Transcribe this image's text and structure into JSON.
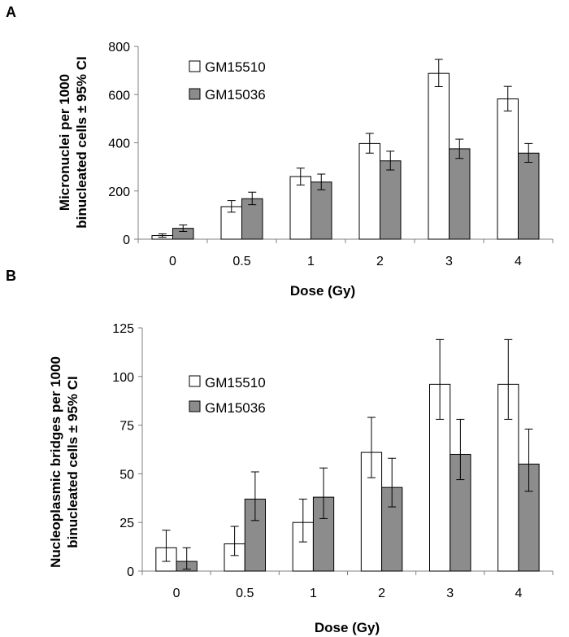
{
  "chart_data": [
    {
      "panel": "A",
      "type": "bar",
      "categories": [
        "0",
        "0.5",
        "1",
        "2",
        "3",
        "4"
      ],
      "series": [
        {
          "name": "GM15510",
          "color": "#ffffff",
          "values": [
            15,
            135,
            260,
            397,
            688,
            582
          ],
          "err_low": [
            7,
            23,
            35,
            40,
            55,
            50
          ],
          "err_high": [
            7,
            25,
            35,
            42,
            58,
            52
          ]
        },
        {
          "name": "GM15036",
          "color": "#8c8c8c",
          "values": [
            45,
            168,
            237,
            325,
            375,
            357
          ],
          "err_low": [
            13,
            25,
            32,
            38,
            40,
            38
          ],
          "err_high": [
            14,
            27,
            33,
            40,
            40,
            40
          ]
        }
      ],
      "xlabel": "Dose (Gy)",
      "ylabel_line1": "Micronuclei per 1000",
      "ylabel_line2": "binucleated cells ± 95% CI",
      "ylim": [
        0,
        800
      ],
      "yticks": [
        "0",
        "200",
        "400",
        "600",
        "800"
      ],
      "yticks_values": [
        0,
        200,
        400,
        600,
        800
      ],
      "grid": false,
      "legend_position": "top-left"
    },
    {
      "panel": "B",
      "type": "bar",
      "categories": [
        "0",
        "0.5",
        "1",
        "2",
        "3",
        "4"
      ],
      "series": [
        {
          "name": "GM15510",
          "color": "#ffffff",
          "values": [
            12,
            14,
            25,
            61,
            96,
            96
          ],
          "err_low": [
            7,
            6,
            10,
            13,
            18,
            18
          ],
          "err_high": [
            9,
            9,
            12,
            18,
            23,
            23
          ]
        },
        {
          "name": "GM15036",
          "color": "#8c8c8c",
          "values": [
            5,
            37,
            38,
            43,
            60,
            55
          ],
          "err_low": [
            4,
            11,
            11,
            10,
            13,
            14
          ],
          "err_high": [
            7,
            14,
            15,
            15,
            18,
            18
          ]
        }
      ],
      "xlabel": "Dose (Gy)",
      "ylabel_line1": "Nucleoplasmic bridges per 1000",
      "ylabel_line2": "binucleated cells ± 95% CI",
      "ylim": [
        0,
        125
      ],
      "yticks": [
        "0",
        "25",
        "50",
        "75",
        "100",
        "125"
      ],
      "yticks_values": [
        0,
        25,
        50,
        75,
        100,
        125
      ],
      "grid": false,
      "legend_position": "top-left"
    }
  ]
}
